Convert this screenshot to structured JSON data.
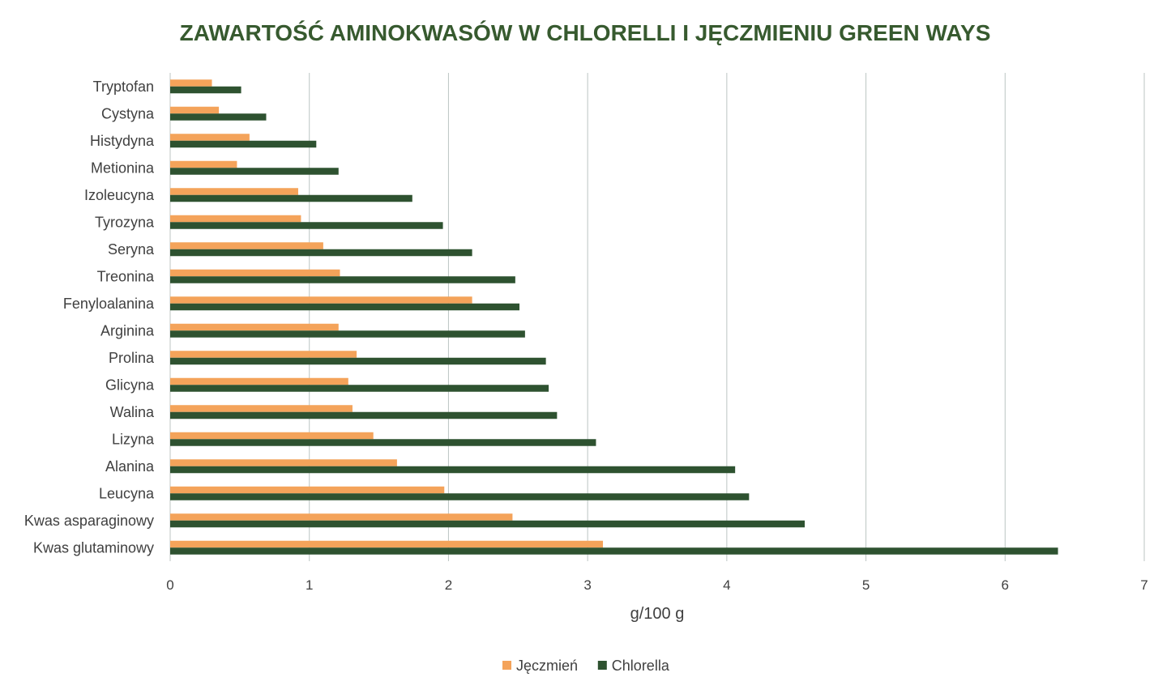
{
  "chart_data": {
    "type": "bar",
    "orientation": "horizontal",
    "title": "ZAWARTOŚĆ AMINOKWASÓW W CHLORELLI I JĘCZMIENIU GREEN WAYS",
    "xlabel": "g/100 g",
    "ylabel": "",
    "xlim": [
      0,
      7
    ],
    "xticks": [
      "0",
      "1",
      "2",
      "3",
      "4",
      "5",
      "6",
      "7"
    ],
    "grid": true,
    "legend_position": "bottom",
    "categories": [
      "Tryptofan",
      "Cystyna",
      "Histydyna",
      "Metionina",
      "Izoleucyna",
      "Tyrozyna",
      "Seryna",
      "Treonina",
      "Fenyloalanina",
      "Arginina",
      "Prolina",
      "Glicyna",
      "Walina",
      "Lizyna",
      "Alanina",
      "Leucyna",
      "Kwas asparaginowy",
      "Kwas glutaminowy"
    ],
    "series": [
      {
        "name": "Jęczmień",
        "color": "#f4a35a",
        "values": [
          0.3,
          0.35,
          0.57,
          0.48,
          0.92,
          0.94,
          1.1,
          1.22,
          2.17,
          1.21,
          1.34,
          1.28,
          1.31,
          1.46,
          1.63,
          1.97,
          2.46,
          3.11
        ]
      },
      {
        "name": "Chlorella",
        "color": "#2e5230",
        "values": [
          0.51,
          0.69,
          1.05,
          1.21,
          1.74,
          1.96,
          2.17,
          2.48,
          2.51,
          2.55,
          2.7,
          2.72,
          2.78,
          3.06,
          4.06,
          4.16,
          4.56,
          6.38
        ]
      }
    ]
  }
}
